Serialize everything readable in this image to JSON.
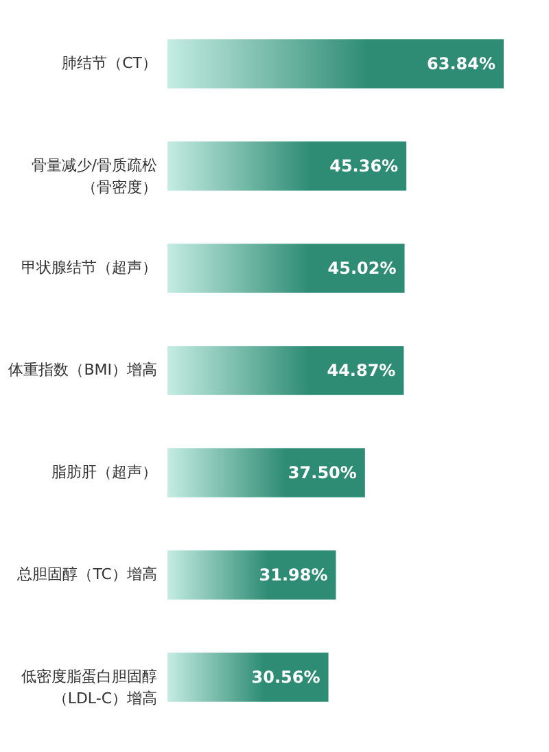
{
  "chart_data": {
    "type": "bar",
    "orientation": "horizontal",
    "tick_labels": "y",
    "categories": [
      "肺结节（CT）",
      "骨量减少/骨质疏松（骨密度）",
      "甲状腺结节（超声）",
      "体重指数（BMI）增高",
      "脂肪肝（超声）",
      "总胆固醇（TC）增高",
      "低密度脂蛋白胆固醇（LDL-C）增高"
    ],
    "values": [
      63.84,
      45.36,
      45.02,
      44.87,
      37.5,
      31.98,
      30.56
    ],
    "value_labels": [
      "63.84%",
      "45.36%",
      "45.02%",
      "44.87%",
      "37.50%",
      "31.98%",
      "30.56%"
    ],
    "color": "#2e8c74"
  }
}
